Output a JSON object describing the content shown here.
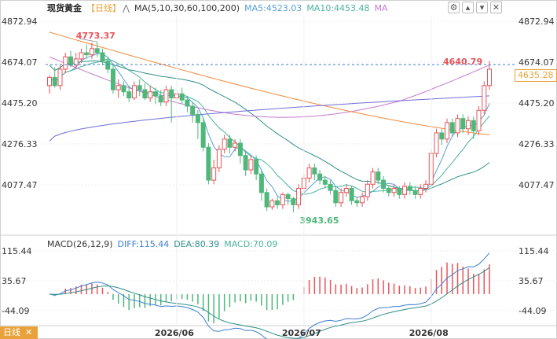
{
  "header": {
    "instrument": "现货黄金",
    "period": "【日线】",
    "ma_label": "MA(5,10,30,60,100,200)",
    "ma5_label": "MA5:4523.03",
    "ma10_label": "MA10:4453.48",
    "ma_more": "MA",
    "icons": [
      "settings-icon",
      "up-icon",
      "down-icon",
      "close-icon"
    ]
  },
  "macd_header": {
    "label": "MACD(26,12,9)",
    "diff": "DIFF:115.44",
    "dea": "DEA:80.39",
    "macd": "MACD:70.09"
  },
  "footer": {
    "period_tab": "日线"
  },
  "colors": {
    "up": "#e8545a",
    "down": "#4db87a",
    "ma5": "#5a9ed6",
    "ma10": "#4cb3a0",
    "ma30": "#2f8f8a",
    "ma60": "#c77ad1",
    "ma100": "#f08a3c",
    "ma200": "#6e6ed6",
    "diff": "#3b7fd4",
    "dea": "#2f8f8a",
    "accent": "#e9a23b"
  },
  "chart_data": {
    "type": "candlestick",
    "price_axis": {
      "ticks": [
        "4872.94",
        "4674.07",
        "4475.20",
        "4276.33",
        "4077.47"
      ],
      "range": [
        3840,
        4900
      ]
    },
    "current_price": "4635.28",
    "annotations": {
      "high": "4773.37",
      "low": "3943.65",
      "last": "4640.79"
    },
    "x_ticks": [
      "2026/06",
      "2026/07",
      "2026/08"
    ],
    "candles": [
      [
        4560,
        4600,
        4520,
        4610
      ],
      [
        4600,
        4560,
        4550,
        4650
      ],
      [
        4560,
        4640,
        4540,
        4660
      ],
      [
        4640,
        4700,
        4620,
        4720
      ],
      [
        4700,
        4660,
        4650,
        4730
      ],
      [
        4660,
        4690,
        4640,
        4720
      ],
      [
        4690,
        4720,
        4670,
        4740
      ],
      [
        4720,
        4710,
        4690,
        4760
      ],
      [
        4710,
        4740,
        4690,
        4770
      ],
      [
        4740,
        4720,
        4700,
        4773
      ],
      [
        4720,
        4680,
        4660,
        4740
      ],
      [
        4680,
        4640,
        4620,
        4700
      ],
      [
        4640,
        4540,
        4520,
        4660
      ],
      [
        4540,
        4560,
        4500,
        4590
      ],
      [
        4560,
        4530,
        4510,
        4580
      ],
      [
        4530,
        4500,
        4480,
        4560
      ],
      [
        4500,
        4560,
        4490,
        4580
      ],
      [
        4560,
        4540,
        4510,
        4590
      ],
      [
        4540,
        4500,
        4490,
        4570
      ],
      [
        4500,
        4530,
        4480,
        4560
      ],
      [
        4530,
        4510,
        4470,
        4550
      ],
      [
        4510,
        4480,
        4460,
        4540
      ],
      [
        4480,
        4540,
        4460,
        4560
      ],
      [
        4540,
        4500,
        4380,
        4560
      ],
      [
        4500,
        4520,
        4470,
        4540
      ],
      [
        4520,
        4490,
        4470,
        4550
      ],
      [
        4490,
        4460,
        4430,
        4510
      ],
      [
        4460,
        4420,
        4380,
        4480
      ],
      [
        4420,
        4380,
        4300,
        4440
      ],
      [
        4380,
        4260,
        4240,
        4400
      ],
      [
        4260,
        4100,
        4080,
        4280
      ],
      [
        4100,
        4160,
        4080,
        4200
      ],
      [
        4160,
        4250,
        4140,
        4270
      ],
      [
        4250,
        4300,
        4230,
        4320
      ],
      [
        4300,
        4260,
        4230,
        4320
      ],
      [
        4260,
        4280,
        4240,
        4300
      ],
      [
        4280,
        4220,
        4180,
        4300
      ],
      [
        4220,
        4150,
        4120,
        4240
      ],
      [
        4150,
        4200,
        4130,
        4220
      ],
      [
        4200,
        4130,
        4100,
        4220
      ],
      [
        4130,
        4040,
        4000,
        4150
      ],
      [
        4040,
        3970,
        3950,
        4060
      ],
      [
        3970,
        4000,
        3955,
        4010
      ],
      [
        4000,
        3980,
        3960,
        4020
      ],
      [
        3980,
        4030,
        3960,
        4040
      ],
      [
        4030,
        4010,
        3980,
        4040
      ],
      [
        4010,
        3980,
        3943,
        4020
      ],
      [
        3980,
        4060,
        3960,
        4080
      ],
      [
        4060,
        4110,
        4040,
        4130
      ],
      [
        4110,
        4160,
        4090,
        4180
      ],
      [
        4160,
        4130,
        4100,
        4180
      ],
      [
        4130,
        4100,
        4080,
        4150
      ],
      [
        4100,
        4080,
        4060,
        4120
      ],
      [
        4080,
        4050,
        4030,
        4100
      ],
      [
        4050,
        3990,
        3970,
        4070
      ],
      [
        3990,
        4040,
        3970,
        4060
      ],
      [
        4040,
        4060,
        4020,
        4080
      ],
      [
        4060,
        4000,
        3980,
        4070
      ],
      [
        4000,
        3990,
        3970,
        4020
      ],
      [
        3990,
        4020,
        3970,
        4040
      ],
      [
        4020,
        4080,
        4000,
        4100
      ],
      [
        4080,
        4140,
        4060,
        4160
      ],
      [
        4140,
        4100,
        4080,
        4160
      ],
      [
        4100,
        4060,
        4040,
        4120
      ],
      [
        4060,
        4040,
        4020,
        4070
      ],
      [
        4040,
        4060,
        4020,
        4080
      ],
      [
        4060,
        4030,
        4010,
        4070
      ],
      [
        4030,
        4070,
        4010,
        4090
      ],
      [
        4070,
        4050,
        4030,
        4090
      ],
      [
        4050,
        4030,
        4010,
        4070
      ],
      [
        4030,
        4060,
        4010,
        4080
      ],
      [
        4060,
        4080,
        4040,
        4100
      ],
      [
        4080,
        4230,
        4070,
        4250
      ],
      [
        4230,
        4330,
        4210,
        4350
      ],
      [
        4330,
        4300,
        4270,
        4350
      ],
      [
        4300,
        4380,
        4280,
        4400
      ],
      [
        4380,
        4330,
        4310,
        4400
      ],
      [
        4330,
        4400,
        4310,
        4420
      ],
      [
        4400,
        4350,
        4330,
        4420
      ],
      [
        4350,
        4390,
        4320,
        4410
      ],
      [
        4390,
        4340,
        4300,
        4410
      ],
      [
        4340,
        4440,
        4320,
        4460
      ],
      [
        4440,
        4560,
        4420,
        4580
      ],
      [
        4560,
        4640,
        4540,
        4680
      ]
    ],
    "macd": {
      "axis_ticks": [
        "115.44",
        "35.67",
        "-44.09"
      ],
      "range": [
        -80,
        130
      ]
    }
  }
}
